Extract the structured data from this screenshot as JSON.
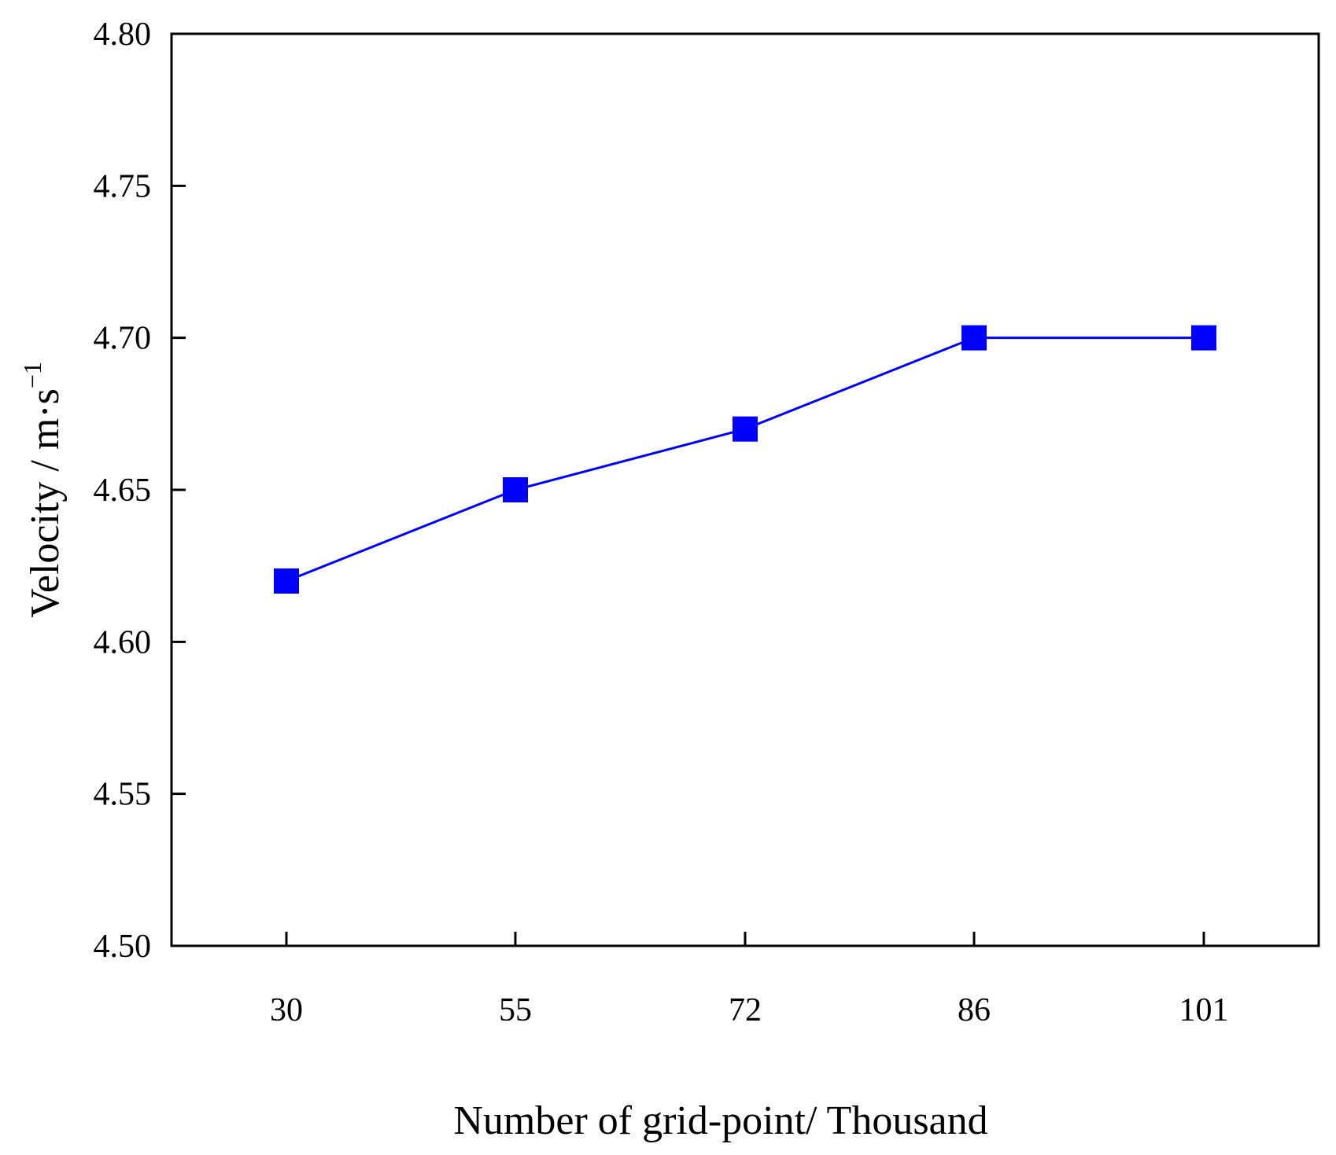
{
  "chart_data": {
    "type": "line",
    "title": "",
    "xlabel": "Number of grid-point/ Thousand",
    "ylabel": {
      "main": "Velocity / m·s",
      "superscript": "−1"
    },
    "categories": [
      "30",
      "55",
      "72",
      "86",
      "101"
    ],
    "series": [
      {
        "values": [
          4.62,
          4.65,
          4.67,
          4.7,
          4.7
        ],
        "color": "#0000ff",
        "marker": "square"
      }
    ],
    "ylim": [
      4.5,
      4.8
    ],
    "yticks": [
      "4.50",
      "4.55",
      "4.60",
      "4.65",
      "4.70",
      "4.75",
      "4.80"
    ],
    "grid": false,
    "legend": "none"
  }
}
